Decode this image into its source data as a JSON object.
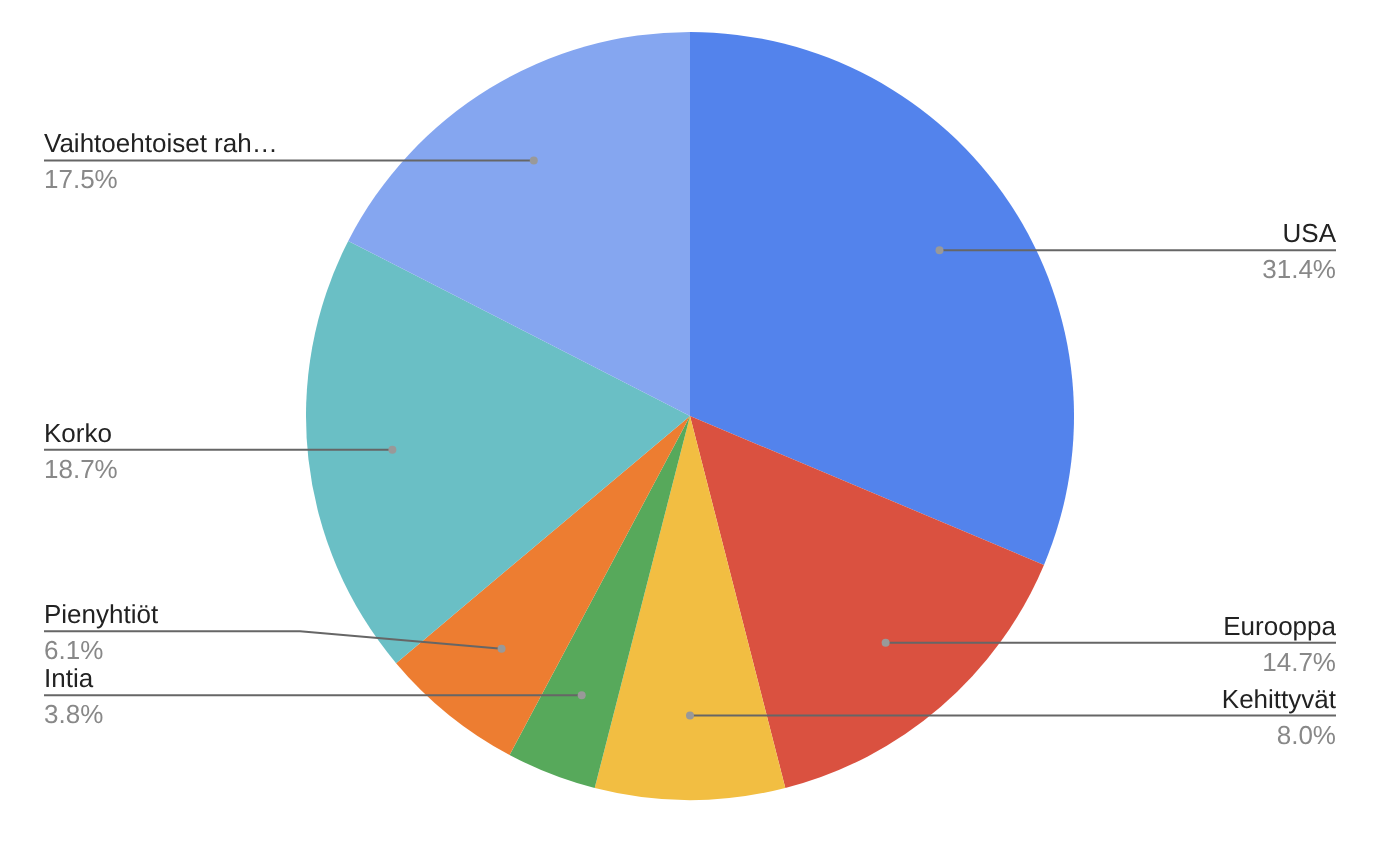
{
  "chart_data": {
    "type": "pie",
    "categories": [
      "USA",
      "Eurooppa",
      "Kehittyvät",
      "Intia",
      "Pienyhtiöt",
      "Korko",
      "Vaihtoehtoiset rah…"
    ],
    "values": [
      31.4,
      14.7,
      8.0,
      3.8,
      6.1,
      18.7,
      17.5
    ],
    "colors": [
      "#5383ec",
      "#da5140",
      "#f2be42",
      "#57a95b",
      "#ed7d31",
      "#6abfc5",
      "#85a6f0"
    ],
    "value_labels": [
      "31.4%",
      "14.7%",
      "8.0%",
      "3.8%",
      "6.1%",
      "18.7%",
      "17.5%"
    ]
  }
}
